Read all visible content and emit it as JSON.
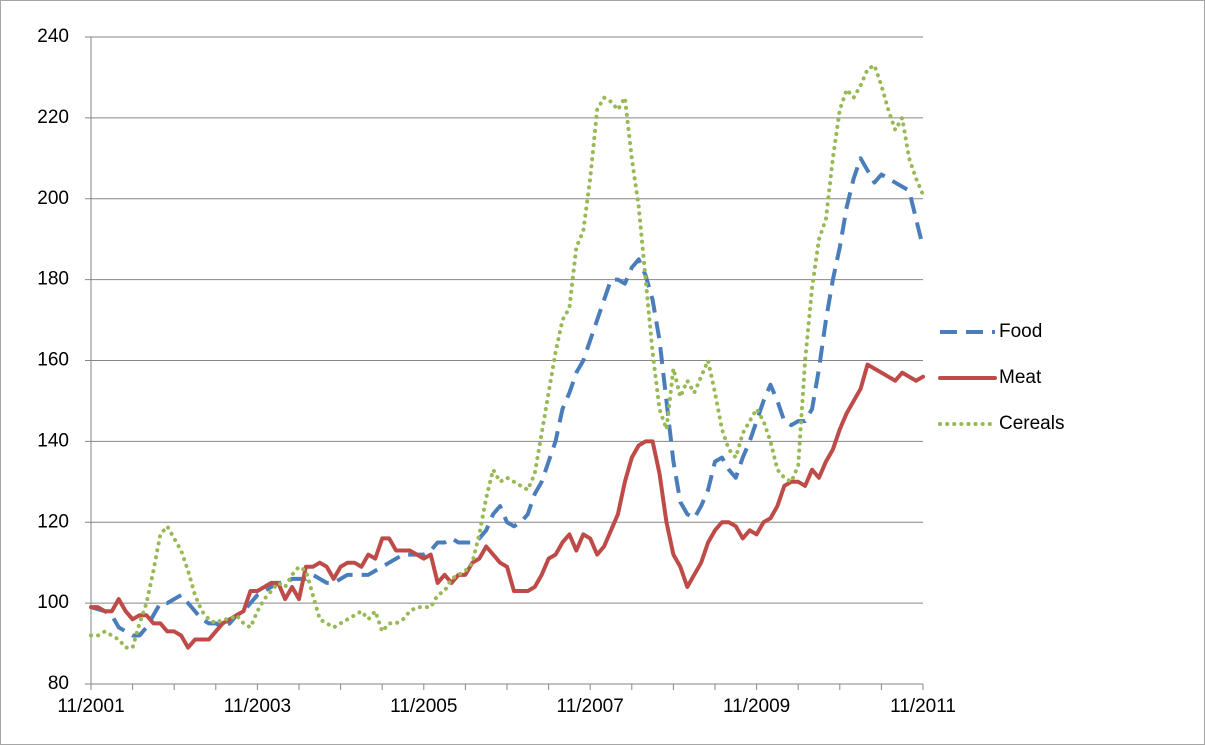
{
  "chart_data": {
    "type": "line",
    "categories": [
      "11/2001",
      null,
      null,
      null,
      null,
      null,
      null,
      null,
      null,
      null,
      null,
      null,
      null,
      null,
      null,
      null,
      null,
      null,
      null,
      null,
      null,
      null,
      null,
      null,
      "11/2003",
      null,
      null,
      null,
      null,
      null,
      null,
      null,
      null,
      null,
      null,
      null,
      null,
      null,
      null,
      null,
      null,
      null,
      null,
      null,
      null,
      null,
      null,
      null,
      "11/2005",
      null,
      null,
      null,
      null,
      null,
      null,
      null,
      null,
      null,
      null,
      null,
      null,
      null,
      null,
      null,
      null,
      null,
      null,
      null,
      null,
      null,
      null,
      null,
      "11/2007",
      null,
      null,
      null,
      null,
      null,
      null,
      null,
      null,
      null,
      null,
      null,
      null,
      null,
      null,
      null,
      null,
      null,
      null,
      null,
      null,
      null,
      null,
      null,
      "11/2009",
      null,
      null,
      null,
      null,
      null,
      null,
      null,
      null,
      null,
      null,
      null,
      null,
      null,
      null,
      null,
      null,
      null,
      null,
      null,
      null,
      null,
      null,
      null,
      "11/2011"
    ],
    "series": [
      {
        "name": "Food",
        "color": "#4a7ebb",
        "style": "dashed",
        "values": [
          99,
          98.5,
          98,
          97,
          94,
          93,
          92,
          92,
          94,
          97,
          100,
          100,
          101,
          102,
          100,
          98,
          96,
          95,
          95,
          94,
          95,
          97,
          98,
          100,
          102,
          103,
          104,
          105,
          105,
          106,
          106,
          106,
          107,
          106,
          105,
          105,
          106,
          107,
          107,
          107,
          107,
          108,
          109,
          110,
          111,
          112,
          112,
          112,
          112,
          113,
          115,
          115,
          116,
          115,
          115,
          115,
          116,
          118,
          122,
          124,
          120,
          119,
          120,
          122,
          127,
          130,
          135,
          140,
          148,
          152,
          157,
          160,
          165,
          170,
          175,
          180,
          180,
          179,
          183,
          185,
          181,
          175,
          165,
          150,
          135,
          125,
          122,
          121,
          124,
          128,
          135,
          136,
          133,
          131,
          136,
          140,
          145,
          150,
          154,
          150,
          145,
          144,
          145,
          145,
          148,
          158,
          170,
          180,
          188,
          198,
          205,
          210,
          207,
          204,
          206,
          205,
          204,
          203,
          202,
          195,
          188
        ]
      },
      {
        "name": "Meat",
        "color": "#be4b48",
        "style": "solid",
        "values": [
          99,
          99,
          98,
          98,
          101,
          98,
          96,
          97,
          97,
          95,
          95,
          93,
          93,
          92,
          89,
          91,
          91,
          91,
          93,
          95,
          96,
          97,
          98,
          103,
          103,
          104,
          105,
          105,
          101,
          104,
          101,
          109,
          109,
          110,
          109,
          106,
          109,
          110,
          110,
          109,
          112,
          111,
          116,
          116,
          113,
          113,
          113,
          112,
          111,
          112,
          105,
          107,
          105,
          107,
          107,
          110,
          111,
          114,
          112,
          110,
          109,
          103,
          103,
          103,
          104,
          107,
          111,
          112,
          115,
          117,
          113,
          117,
          116,
          112,
          114,
          118,
          122,
          130,
          136,
          139,
          140,
          140,
          132,
          120,
          112,
          109,
          104,
          107,
          110,
          115,
          118,
          120,
          120,
          119,
          116,
          118,
          117,
          120,
          121,
          124,
          129,
          130,
          130,
          129,
          133,
          131,
          135,
          138,
          143,
          147,
          150,
          153,
          159,
          158,
          157,
          156,
          155,
          157,
          156,
          155,
          156
        ]
      },
      {
        "name": "Cereals",
        "color": "#98b954",
        "style": "dotted",
        "values": [
          92,
          92,
          93,
          92,
          91,
          89,
          89,
          95,
          100,
          108,
          117,
          119,
          116,
          113,
          108,
          102,
          98,
          96,
          95,
          96,
          96,
          97,
          95,
          94,
          98,
          101,
          103,
          105,
          104,
          107,
          109,
          108,
          102,
          96,
          95,
          94,
          95,
          96,
          97,
          98,
          96,
          98,
          93,
          95,
          95,
          96,
          98,
          99,
          99,
          99,
          102,
          103,
          106,
          107,
          108,
          110,
          117,
          126,
          133,
          130,
          131,
          130,
          129,
          128,
          132,
          142,
          152,
          162,
          170,
          173,
          188,
          192,
          205,
          222,
          225,
          224,
          222,
          225,
          210,
          198,
          180,
          162,
          148,
          143,
          158,
          151,
          155,
          152,
          156,
          160,
          152,
          143,
          138,
          136,
          142,
          145,
          148,
          145,
          140,
          133,
          131,
          130,
          134,
          160,
          178,
          190,
          195,
          210,
          222,
          227,
          225,
          228,
          232,
          233,
          228,
          222,
          217,
          220,
          210,
          205,
          201
        ]
      }
    ],
    "ylim": [
      80,
      240
    ],
    "yticks": [
      80,
      100,
      120,
      140,
      160,
      180,
      200,
      220,
      240
    ],
    "grid": true,
    "legend": "right"
  }
}
